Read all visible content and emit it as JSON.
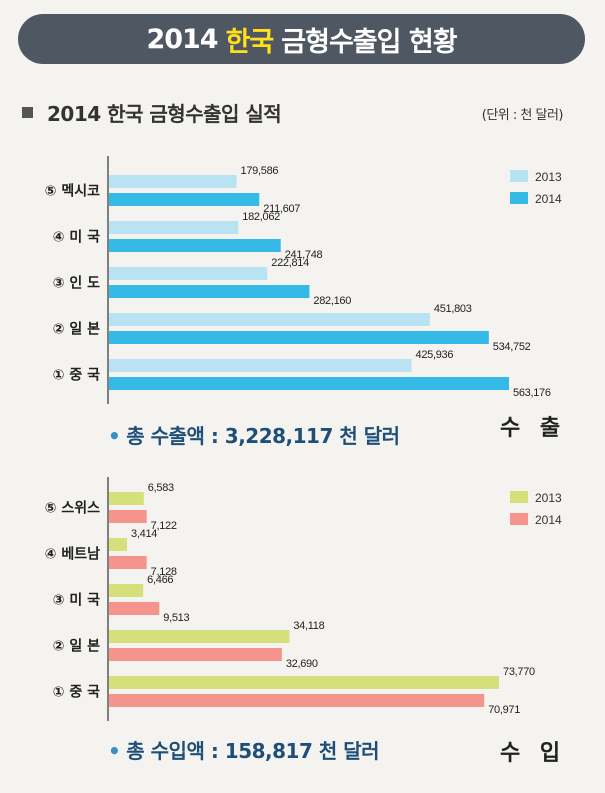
{
  "header": {
    "title_year": "2014",
    "title_highlight": "한국",
    "title_rest": "금형수출입 현황",
    "subtitle": "2014 한국 금형수출입 실적",
    "unit": "(단위 : 천 달러)"
  },
  "colors": {
    "banner": "#4f5763",
    "highlight": "#ffe01a",
    "export_2013": "#b9e3f2",
    "export_2014": "#35b9e6",
    "import_2013": "#d5e07a",
    "import_2014": "#f5948c"
  },
  "export": {
    "section_label": "수 출",
    "total_label": "총 수출액 : 3,228,117 천 달러"
  },
  "import": {
    "section_label": "수 입",
    "total_label": "총 수입액 : 158,817 천 달러"
  },
  "chart_data": [
    {
      "type": "bar",
      "orientation": "horizontal",
      "categories": [
        "⑤ 멕시코",
        "④ 미 국",
        "③ 인 도",
        "② 일 본",
        "① 중 국"
      ],
      "series": [
        {
          "name": "2013",
          "values": [
            179586,
            182062,
            222814,
            451803,
            425936
          ],
          "labels": [
            "179,586",
            "182,062",
            "222,814",
            "451,803",
            "425,936"
          ]
        },
        {
          "name": "2014",
          "values": [
            211607,
            241748,
            282160,
            534752,
            563176
          ],
          "labels": [
            "211,607",
            "241,748",
            "282,160",
            "534,752",
            "563,176"
          ]
        }
      ],
      "legend_position": "top-right"
    },
    {
      "type": "bar",
      "orientation": "horizontal",
      "categories": [
        "⑤ 스위스",
        "④ 베트남",
        "③ 미 국",
        "② 일 본",
        "① 중 국"
      ],
      "series": [
        {
          "name": "2013",
          "values": [
            6583,
            3414,
            6466,
            34118,
            73770
          ],
          "labels": [
            "6,583",
            "3,414",
            "6,466",
            "34,118",
            "73,770"
          ]
        },
        {
          "name": "2014",
          "values": [
            7122,
            7128,
            9513,
            32690,
            70971
          ],
          "labels": [
            "7,122",
            "7,128",
            "9,513",
            "32,690",
            "70,971"
          ]
        }
      ],
      "legend_position": "top-right"
    }
  ]
}
